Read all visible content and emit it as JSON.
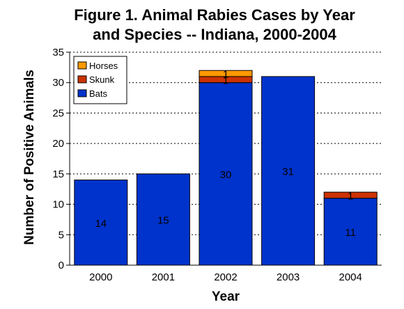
{
  "chart_data": {
    "type": "bar",
    "stacked": true,
    "title_lines": [
      "Figure 1. Animal Rabies Cases by Year",
      "and Species -- Indiana, 2000-2004"
    ],
    "xlabel": "Year",
    "ylabel": "Number of Positive Animals",
    "categories": [
      "2000",
      "2001",
      "2002",
      "2003",
      "2004"
    ],
    "ylim": [
      0,
      35
    ],
    "yticks": [
      0,
      5,
      10,
      15,
      20,
      25,
      30,
      35
    ],
    "grid": true,
    "legend_position": "top-left",
    "series": [
      {
        "name": "Bats",
        "color": "#0033cc",
        "values": [
          14,
          15,
          30,
          31,
          11
        ],
        "labels": [
          "14",
          "15",
          "30",
          "31",
          "11"
        ]
      },
      {
        "name": "Skunk",
        "color": "#cc3300",
        "values": [
          0,
          0,
          1,
          0,
          1
        ],
        "labels": [
          "",
          "",
          "1",
          "",
          "1"
        ]
      },
      {
        "name": "Horses",
        "color": "#ff9900",
        "values": [
          0,
          0,
          1,
          0,
          0
        ],
        "labels": [
          "",
          "",
          "1",
          "",
          ""
        ]
      }
    ],
    "legend_order": [
      "Horses",
      "Skunk",
      "Bats"
    ]
  }
}
